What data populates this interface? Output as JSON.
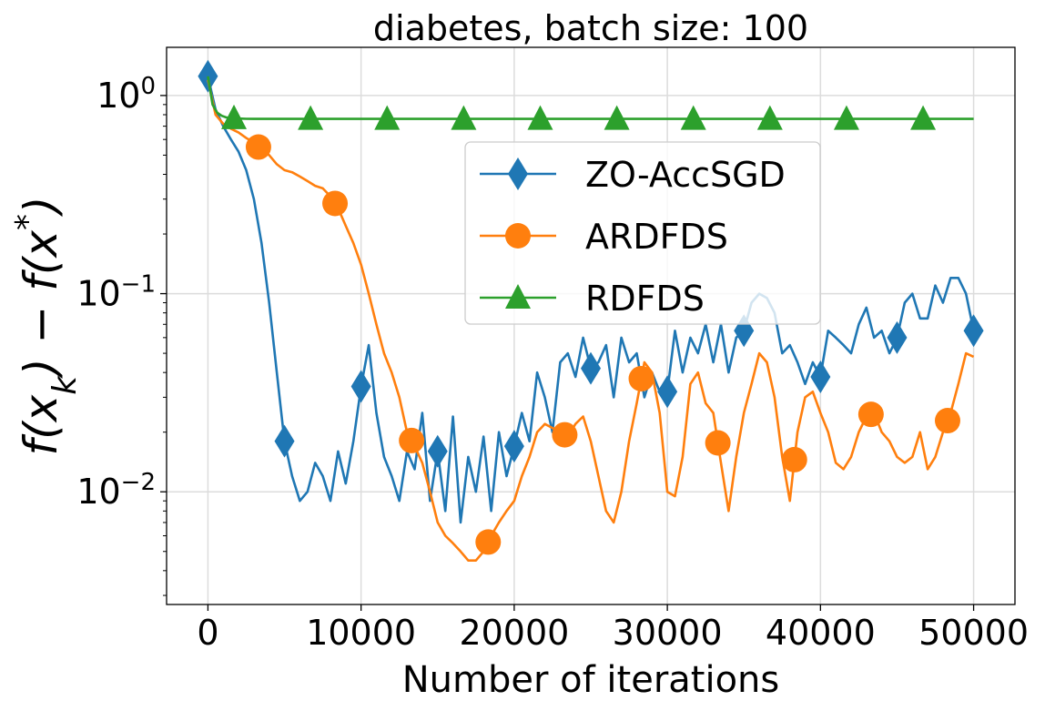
{
  "chart_data": {
    "type": "line",
    "title": "diabetes, batch size: 100",
    "xlabel": "Number of iterations",
    "ylabel": "f(x_k) − f(x*)",
    "yscale": "log",
    "xlim": [
      -2700,
      52700
    ],
    "ylim": [
      0.0027,
      1.75
    ],
    "grid": true,
    "legend_position": "upper right",
    "x_ticks": [
      0,
      10000,
      20000,
      30000,
      40000,
      50000
    ],
    "x_tick_labels": [
      "0",
      "10000",
      "20000",
      "30000",
      "40000",
      "50000"
    ],
    "y_ticks": [
      1,
      0.1,
      0.01
    ],
    "y_tick_labels": [
      {
        "base": "10",
        "exp": "0"
      },
      {
        "base": "10",
        "exp": "−1"
      },
      {
        "base": "10",
        "exp": "−2"
      }
    ],
    "series": [
      {
        "name": "ZO-AccSGD",
        "color": "#1f77b4",
        "marker": "diamond",
        "x": [
          0,
          500,
          1000,
          1500,
          2000,
          2500,
          3000,
          3500,
          4000,
          4500,
          5000,
          5500,
          6000,
          6500,
          7000,
          7500,
          8000,
          8500,
          9000,
          9500,
          10000,
          10500,
          11000,
          11500,
          12000,
          12500,
          13000,
          13500,
          14000,
          14500,
          15000,
          15500,
          16000,
          16500,
          17000,
          17500,
          18000,
          18500,
          19000,
          19500,
          20000,
          20500,
          21000,
          21500,
          22000,
          22500,
          23000,
          23500,
          24000,
          24500,
          25000,
          25500,
          26000,
          26500,
          27000,
          27500,
          28000,
          28500,
          29000,
          29500,
          30000,
          30500,
          31000,
          31500,
          32000,
          32500,
          33000,
          33500,
          34000,
          34500,
          35000,
          35500,
          36000,
          36500,
          37000,
          37500,
          38000,
          38500,
          39000,
          39500,
          40000,
          40500,
          41000,
          41500,
          42000,
          42500,
          43000,
          43500,
          44000,
          44500,
          45000,
          45500,
          46000,
          46500,
          47000,
          47500,
          48000,
          48500,
          49000,
          49500,
          50000
        ],
        "values": [
          1.25,
          0.85,
          0.7,
          0.6,
          0.52,
          0.42,
          0.3,
          0.18,
          0.09,
          0.04,
          0.018,
          0.012,
          0.009,
          0.01,
          0.014,
          0.012,
          0.009,
          0.016,
          0.011,
          0.018,
          0.034,
          0.055,
          0.025,
          0.015,
          0.012,
          0.009,
          0.016,
          0.013,
          0.025,
          0.009,
          0.016,
          0.008,
          0.024,
          0.007,
          0.015,
          0.01,
          0.019,
          0.008,
          0.02,
          0.012,
          0.017,
          0.025,
          0.018,
          0.04,
          0.03,
          0.02,
          0.045,
          0.05,
          0.038,
          0.06,
          0.042,
          0.045,
          0.055,
          0.03,
          0.06,
          0.045,
          0.05,
          0.03,
          0.04,
          0.032,
          0.032,
          0.065,
          0.04,
          0.06,
          0.05,
          0.07,
          0.045,
          0.07,
          0.04,
          0.06,
          0.065,
          0.09,
          0.1,
          0.095,
          0.08,
          0.05,
          0.055,
          0.045,
          0.035,
          0.045,
          0.038,
          0.065,
          0.06,
          0.055,
          0.05,
          0.07,
          0.085,
          0.06,
          0.065,
          0.05,
          0.06,
          0.09,
          0.1,
          0.075,
          0.075,
          0.11,
          0.09,
          0.12,
          0.12,
          0.1,
          0.065
        ]
      },
      {
        "name": "ARDFDS",
        "color": "#ff7f0e",
        "marker": "circle",
        "x": [
          0,
          500,
          1000,
          1500,
          2000,
          2500,
          3000,
          3500,
          4000,
          4500,
          5000,
          5500,
          6000,
          6500,
          7000,
          7500,
          8000,
          8500,
          9000,
          9500,
          10000,
          10500,
          11000,
          11500,
          12000,
          12500,
          13000,
          13500,
          14000,
          14500,
          15000,
          15500,
          16000,
          16500,
          17000,
          17500,
          18000,
          18500,
          19000,
          19500,
          20000,
          20500,
          21000,
          21500,
          22000,
          22500,
          23000,
          23500,
          24000,
          24500,
          25000,
          25500,
          26000,
          26500,
          27000,
          27500,
          28000,
          28500,
          29000,
          29500,
          30000,
          30500,
          31000,
          31500,
          32000,
          32500,
          33000,
          33500,
          34000,
          34500,
          35000,
          35500,
          36000,
          36500,
          37000,
          37500,
          38000,
          38500,
          39000,
          39500,
          40000,
          40500,
          41000,
          41500,
          42000,
          42500,
          43000,
          43500,
          44000,
          44500,
          45000,
          45500,
          46000,
          46500,
          47000,
          47500,
          48000,
          48500,
          49000,
          49500,
          50000
        ],
        "values": [
          1.2,
          0.8,
          0.72,
          0.68,
          0.65,
          0.61,
          0.58,
          0.53,
          0.5,
          0.45,
          0.42,
          0.41,
          0.39,
          0.37,
          0.35,
          0.34,
          0.31,
          0.27,
          0.22,
          0.18,
          0.14,
          0.1,
          0.07,
          0.05,
          0.04,
          0.03,
          0.02,
          0.017,
          0.014,
          0.01,
          0.007,
          0.006,
          0.0055,
          0.005,
          0.0045,
          0.0045,
          0.005,
          0.006,
          0.007,
          0.008,
          0.009,
          0.012,
          0.015,
          0.02,
          0.022,
          0.021,
          0.02,
          0.019,
          0.022,
          0.024,
          0.018,
          0.012,
          0.008,
          0.007,
          0.01,
          0.018,
          0.028,
          0.045,
          0.04,
          0.025,
          0.01,
          0.0095,
          0.015,
          0.035,
          0.04,
          0.028,
          0.025,
          0.014,
          0.008,
          0.015,
          0.025,
          0.035,
          0.05,
          0.045,
          0.03,
          0.015,
          0.009,
          0.02,
          0.03,
          0.032,
          0.025,
          0.02,
          0.014,
          0.013,
          0.015,
          0.02,
          0.024,
          0.025,
          0.02,
          0.018,
          0.015,
          0.014,
          0.015,
          0.02,
          0.013,
          0.015,
          0.02,
          0.025,
          0.035,
          0.05,
          0.048
        ]
      },
      {
        "name": "RDFDS",
        "color": "#2ca02c",
        "marker": "triangle",
        "x": [
          0,
          300,
          600,
          900,
          1200,
          1500,
          2000,
          2500,
          3000,
          50000
        ],
        "values": [
          1.25,
          0.9,
          0.82,
          0.79,
          0.775,
          0.77,
          0.765,
          0.763,
          0.762,
          0.762
        ]
      }
    ]
  }
}
